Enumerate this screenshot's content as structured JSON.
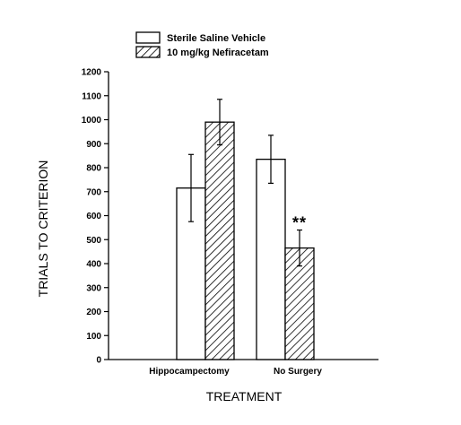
{
  "chart_data": {
    "type": "bar",
    "categories": [
      "Hippocampectomy",
      "No Surgery"
    ],
    "series": [
      {
        "name": "Sterile Saline Vehicle",
        "pattern": "open",
        "values": [
          715,
          835
        ],
        "error": [
          140,
          100
        ]
      },
      {
        "name": "10 mg/kg Nefiracetam",
        "pattern": "hatched",
        "values": [
          990,
          465
        ],
        "error": [
          95,
          75
        ]
      }
    ],
    "xlabel": "TREATMENT",
    "ylabel": "TRIALS TO CRITERION",
    "ylim": [
      0,
      1200
    ],
    "yticks": [
      0,
      100,
      200,
      300,
      400,
      500,
      600,
      700,
      800,
      900,
      1000,
      1100,
      1200
    ],
    "grid": false,
    "legend_position": "top",
    "annotations": [
      {
        "text": "**",
        "category": "No Surgery",
        "series": "10 mg/kg Nefiracetam"
      }
    ],
    "colors": {
      "ink": "#000000",
      "background": "#ffffff"
    }
  }
}
